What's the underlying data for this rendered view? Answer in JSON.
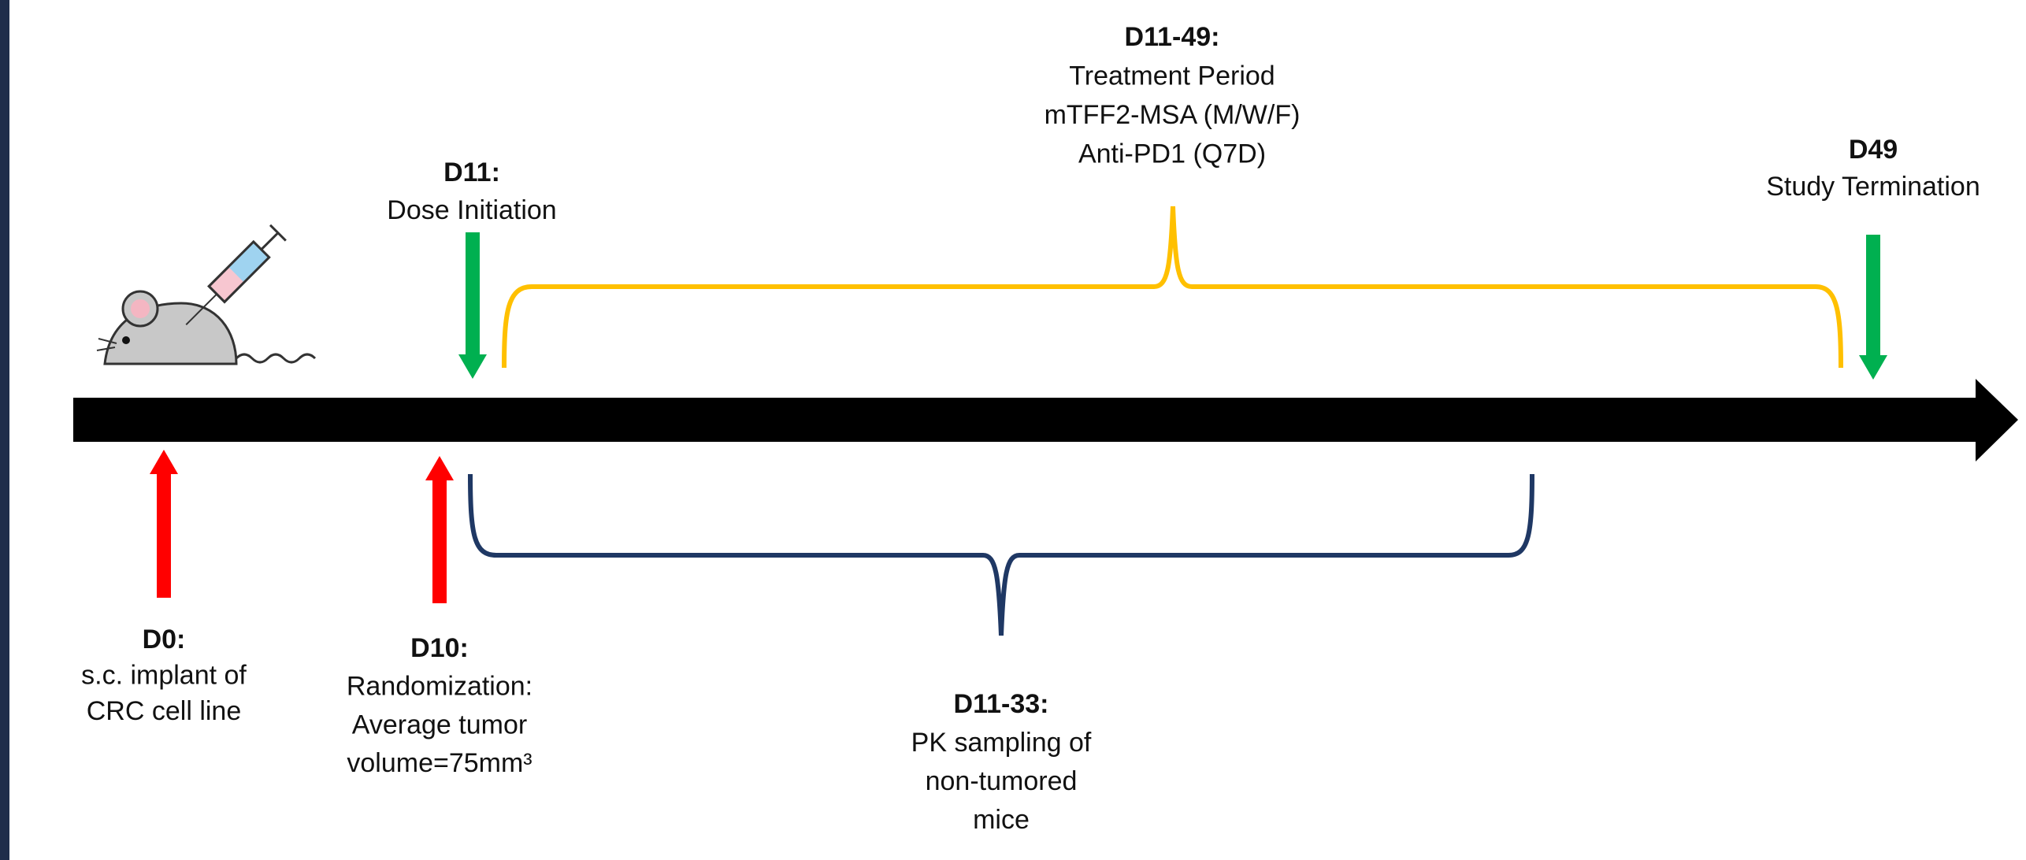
{
  "labels": [
    {
      "title": "D11-49:",
      "lines": [
        "Treatment Period",
        "mTFF2-MSA (M/W/F)",
        "Anti-PD1 (Q7D)"
      ]
    },
    {
      "title": "D11:",
      "lines": [
        "Dose Initiation"
      ]
    },
    {
      "title": "D49",
      "lines": [
        "Study Termination"
      ]
    },
    {
      "title": "D0:",
      "lines": [
        "s.c. implant of",
        "CRC cell line"
      ]
    },
    {
      "title": "D10:",
      "lines": [
        "Randomization:",
        "Average tumor",
        "volume=75mm³"
      ]
    },
    {
      "title": "D11-33:",
      "lines": [
        "PK sampling of",
        "non-tumored",
        "mice"
      ]
    }
  ]
}
